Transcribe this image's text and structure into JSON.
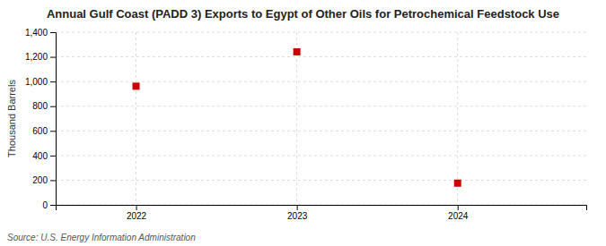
{
  "chart_data": {
    "type": "scatter",
    "title": "Annual Gulf Coast (PADD 3) Exports to Egypt of Other Oils for Petrochemical Feedstock Use",
    "ylabel": "Thousand Barrels",
    "annotations": [
      "Source: U.S. Energy Information Administration"
    ],
    "x": [
      2022,
      2023,
      2024
    ],
    "values": [
      962,
      1241,
      176
    ],
    "color": "#cc0000",
    "marker": "square",
    "xlim": [
      2021.5,
      2024.8
    ],
    "xticks": [
      2022,
      2023,
      2024
    ],
    "ylim": [
      0,
      1400
    ],
    "yticks": [
      0,
      200,
      400,
      600,
      800,
      {
        "value": 1000,
        "label": "1,000"
      },
      {
        "value": 1200,
        "label": "1,200"
      },
      {
        "value": 1400,
        "label": "1,400"
      }
    ],
    "grid": true
  }
}
